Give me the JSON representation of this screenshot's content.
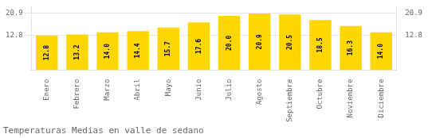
{
  "chart_data": {
    "type": "bar",
    "title": "Temperaturas Medias en valle de sedano",
    "categories": [
      "Enero",
      "Febrero",
      "Marzo",
      "Abril",
      "Mayo",
      "Junio",
      "Julio",
      "Agosto",
      "Septiembre",
      "Octubre",
      "Noviembre",
      "Diciembre"
    ],
    "values": [
      12.8,
      13.2,
      14.0,
      14.4,
      15.7,
      17.6,
      20.0,
      20.9,
      20.5,
      18.5,
      16.3,
      14.0
    ],
    "value_labels": [
      "12.8",
      "13.2",
      "14.0",
      "14.4",
      "15.7",
      "17.6",
      "20.0",
      "20.9",
      "20.5",
      "18.5",
      "16.3",
      "14.0"
    ],
    "color": "#FFD700",
    "ylim": [
      0,
      23.408
    ],
    "yticks": [
      12.8,
      20.9
    ],
    "y2lim": [
      0,
      23.408
    ],
    "y2ticks": [
      12.8,
      20.9
    ],
    "grid": true,
    "data_labels": true
  }
}
